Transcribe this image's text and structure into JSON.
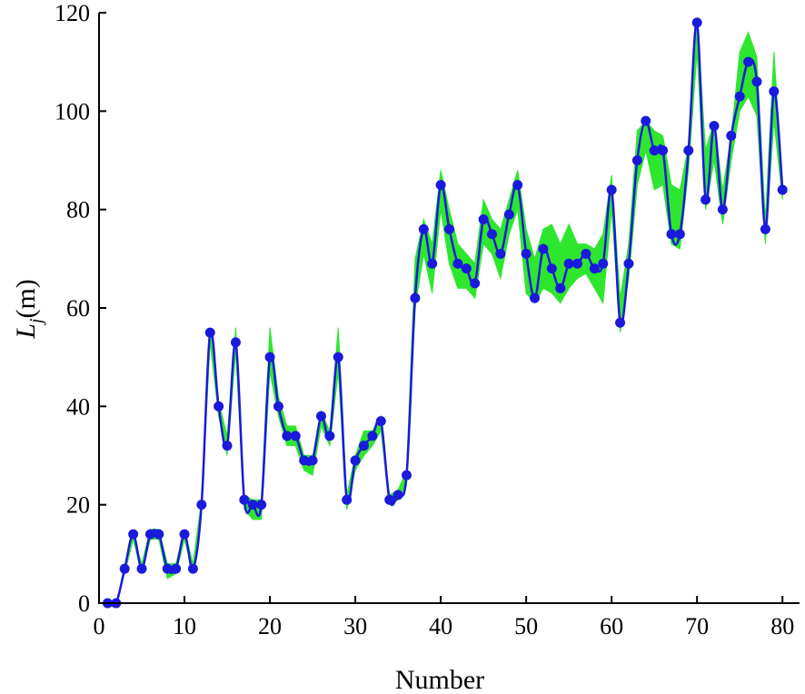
{
  "chart_data": {
    "type": "line",
    "xlabel": "Number",
    "ylabel_main": "L",
    "ylabel_sub": "j",
    "ylabel_unit": "(m)",
    "xlim": [
      0,
      82
    ],
    "ylim": [
      0,
      120
    ],
    "xticks": [
      0,
      10,
      20,
      30,
      40,
      50,
      60,
      70,
      80
    ],
    "yticks": [
      0,
      20,
      40,
      60,
      80,
      100,
      120
    ],
    "grid": false,
    "line_color": "#1a1adc",
    "marker_color": "#1a1adc",
    "band_color": "#2ee62e",
    "x": [
      1,
      2,
      3,
      4,
      5,
      6,
      7,
      8,
      9,
      10,
      11,
      12,
      13,
      14,
      15,
      16,
      17,
      18,
      19,
      20,
      21,
      22,
      23,
      24,
      25,
      26,
      27,
      28,
      29,
      30,
      31,
      32,
      33,
      34,
      35,
      36,
      37,
      38,
      39,
      40,
      41,
      42,
      43,
      44,
      45,
      46,
      47,
      48,
      49,
      50,
      51,
      52,
      53,
      54,
      55,
      56,
      57,
      58,
      59,
      60,
      61,
      62,
      63,
      64,
      65,
      66,
      67,
      68,
      69,
      70,
      71,
      72,
      73,
      74,
      75,
      76,
      77,
      78,
      79,
      80
    ],
    "y": [
      0,
      0,
      7,
      14,
      7,
      14,
      14,
      7,
      7,
      14,
      7,
      20,
      55,
      40,
      32,
      53,
      21,
      20,
      20,
      50,
      40,
      34,
      34,
      29,
      29,
      38,
      34,
      50,
      21,
      29,
      32,
      34,
      37,
      21,
      22,
      26,
      62,
      76,
      69,
      85,
      76,
      69,
      68,
      65,
      78,
      75,
      71,
      79,
      85,
      71,
      62,
      72,
      68,
      64,
      69,
      69,
      71,
      68,
      69,
      84,
      57,
      69,
      90,
      98,
      92,
      92,
      75,
      75,
      92,
      118,
      82,
      97,
      80,
      95,
      103,
      110,
      106,
      76,
      104,
      84
    ],
    "band_upper": [
      0,
      0,
      7,
      14,
      8,
      15,
      15,
      8,
      8,
      15,
      8,
      21,
      56,
      41,
      34,
      56,
      22,
      21,
      21,
      56,
      42,
      36,
      36,
      30,
      30,
      39,
      35,
      56,
      22,
      30,
      35,
      35,
      38,
      22,
      23,
      27,
      70,
      78,
      73,
      88,
      80,
      73,
      71,
      69,
      82,
      78,
      76,
      82,
      88,
      76,
      70,
      76,
      77,
      73,
      77,
      73,
      73,
      72,
      75,
      87,
      62,
      73,
      96,
      98,
      96,
      95,
      85,
      84,
      93,
      119,
      92,
      98,
      84,
      95,
      112,
      116,
      111,
      78,
      112,
      86
    ],
    "band_lower": [
      0,
      0,
      6,
      13,
      6,
      13,
      13,
      5,
      6,
      13,
      6,
      19,
      53,
      38,
      30,
      51,
      19,
      17,
      17,
      47,
      38,
      32,
      32,
      27,
      26,
      36,
      32,
      47,
      19,
      27,
      30,
      32,
      35,
      20,
      21,
      24,
      60,
      71,
      63,
      80,
      69,
      64,
      64,
      62,
      73,
      71,
      66,
      75,
      80,
      63,
      61,
      64,
      63,
      61,
      64,
      66,
      67,
      64,
      61,
      80,
      55,
      66,
      85,
      92,
      84,
      85,
      73,
      72,
      88,
      112,
      80,
      90,
      77,
      90,
      100,
      103,
      99,
      73,
      98,
      82
    ]
  }
}
